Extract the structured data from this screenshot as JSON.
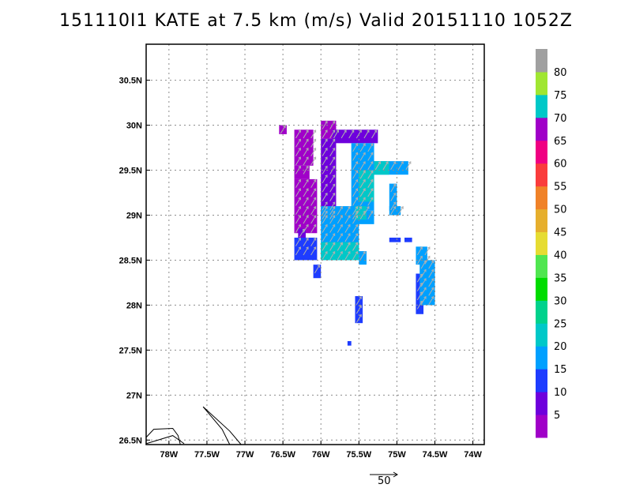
{
  "chart_data": {
    "type": "heatmap",
    "title": "151110I1 KATE at 7.5 km (m/s) Valid 20151110 1052Z",
    "x_ticks": [
      "78W",
      "77.5W",
      "77W",
      "76.5W",
      "76W",
      "75.5W",
      "75W",
      "74.5W",
      "74W"
    ],
    "y_ticks": [
      "26.5N",
      "27N",
      "27.5N",
      "28N",
      "28.5N",
      "29N",
      "29.5N",
      "30N",
      "30.5N"
    ],
    "xlim": [
      -78.3,
      -73.85
    ],
    "ylim": [
      26.45,
      30.9
    ],
    "grid": true,
    "colorbar": {
      "labels": [
        "5",
        "10",
        "15",
        "20",
        "25",
        "30",
        "35",
        "40",
        "45",
        "50",
        "55",
        "60",
        "65",
        "70",
        "75",
        "80"
      ],
      "colors": [
        "#a000c8",
        "#6e00dc",
        "#1e3cff",
        "#00a0ff",
        "#00c8c8",
        "#00d28c",
        "#00dc00",
        "#50e650",
        "#e6dc32",
        "#e6af2d",
        "#f08228",
        "#fa3c3c",
        "#f00082",
        "#a000c8",
        "#00c8c8",
        "#a0e632",
        "#a0a0a0"
      ]
    },
    "reference_vector": "50",
    "regions": [
      {
        "category": "5",
        "cells": [
          [
            -76.55,
            30.0,
            0.1,
            0.1
          ],
          [
            -76.35,
            29.95,
            0.25,
            0.4
          ],
          [
            -76.35,
            29.55,
            0.2,
            0.15
          ],
          [
            -76.35,
            29.4,
            0.3,
            0.6
          ],
          [
            -76.0,
            30.05,
            0.2,
            0.2
          ]
        ]
      },
      {
        "category": "10",
        "cells": [
          [
            -75.85,
            29.95,
            0.6,
            0.15
          ],
          [
            -76.0,
            29.85,
            0.2,
            0.9
          ],
          [
            -76.3,
            28.85,
            0.1,
            0.15
          ]
        ]
      },
      {
        "category": "15",
        "cells": [
          [
            -76.35,
            28.75,
            0.3,
            0.25
          ],
          [
            -76.1,
            28.45,
            0.1,
            0.15
          ],
          [
            -75.55,
            28.1,
            0.1,
            0.3
          ],
          [
            -75.65,
            27.6,
            0.05,
            0.05
          ],
          [
            -74.75,
            28.35,
            0.1,
            0.45
          ],
          [
            -74.9,
            28.75,
            0.1,
            0.05
          ],
          [
            -75.1,
            28.75,
            0.15,
            0.05
          ]
        ]
      },
      {
        "category": "20",
        "cells": [
          [
            -76.0,
            29.1,
            0.5,
            0.55
          ],
          [
            -75.6,
            29.8,
            0.3,
            0.75
          ],
          [
            -75.3,
            29.6,
            0.45,
            0.15
          ],
          [
            -75.1,
            29.35,
            0.1,
            0.3
          ],
          [
            -74.75,
            28.65,
            0.15,
            0.2
          ],
          [
            -74.7,
            28.5,
            0.2,
            0.5
          ],
          [
            -75.5,
            28.6,
            0.1,
            0.15
          ],
          [
            -75.1,
            29.1,
            0.15,
            0.1
          ],
          [
            -75.6,
            29.05,
            0.3,
            0.15
          ]
        ]
      },
      {
        "category": "25",
        "cells": [
          [
            -76.0,
            28.7,
            0.5,
            0.2
          ],
          [
            -75.5,
            29.5,
            0.2,
            0.35
          ],
          [
            -75.3,
            29.6,
            0.2,
            0.15
          ],
          [
            -75.55,
            29.1,
            0.15,
            0.15
          ]
        ]
      }
    ]
  }
}
